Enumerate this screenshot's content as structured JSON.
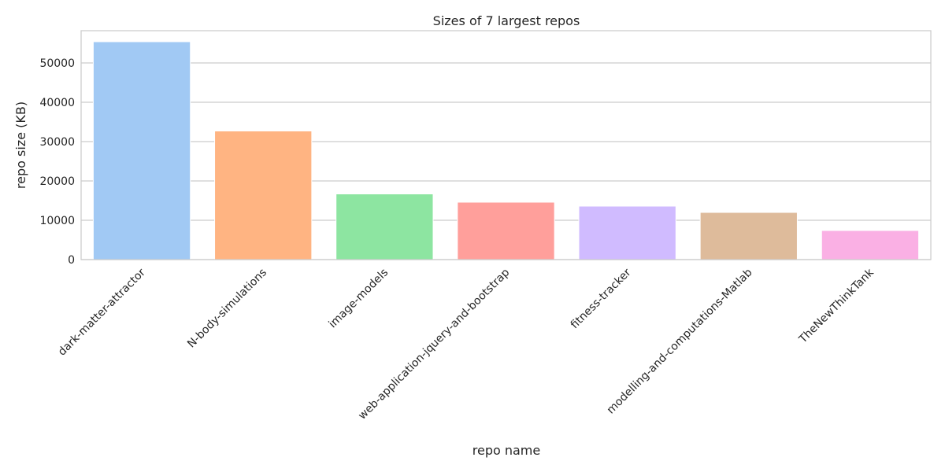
{
  "chart_data": {
    "type": "bar",
    "title": "Sizes of 7 largest repos",
    "xlabel": "repo name",
    "ylabel": "repo size (KB)",
    "categories": [
      "dark-matter-attractor",
      "N-body-simulations",
      "image-models",
      "web-application-jquery-and-bootstrap",
      "fitness-tracker",
      "modelling-and-computations-Matlab",
      "TheNewThinkTank"
    ],
    "values": [
      55400,
      32700,
      16700,
      14600,
      13600,
      12000,
      7400
    ],
    "colors": [
      "#a1c9f4",
      "#ffb482",
      "#8de5a1",
      "#ff9f9b",
      "#d0bbff",
      "#debb9b",
      "#fab0e4"
    ],
    "yticks": [
      0,
      10000,
      20000,
      30000,
      40000,
      50000
    ],
    "ylim": [
      0,
      58200
    ],
    "grid": "horizontal"
  }
}
